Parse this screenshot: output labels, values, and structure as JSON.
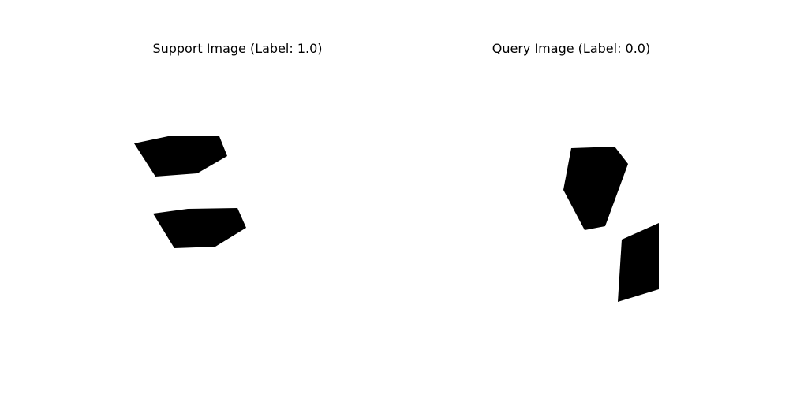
{
  "support": {
    "title": "Support Image (Label: 1.0)"
  },
  "query": {
    "title": "Query Image (Label: 0.0)"
  },
  "colors": {
    "background": "#ffffff",
    "shape_fill": "#000000",
    "text": "#000000"
  }
}
